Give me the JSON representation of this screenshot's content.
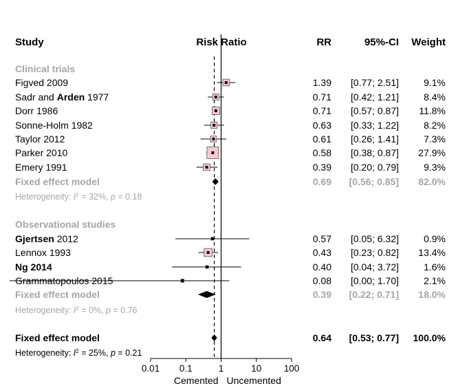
{
  "chart_data": {
    "type": "forest",
    "headers": {
      "study": "Study",
      "plot": "Risk Ratio",
      "rr": "RR",
      "ci": "95%-CI",
      "weight": "Weight"
    },
    "x_scale": "log",
    "xlim": [
      0.01,
      100
    ],
    "x_ticks": [
      {
        "value": 0.01,
        "label": "0.01"
      },
      {
        "value": 0.1,
        "label": "0.1"
      },
      {
        "value": 1,
        "label": "1"
      },
      {
        "value": 10,
        "label": "10"
      },
      {
        "value": 100,
        "label": "100"
      }
    ],
    "x_labels": {
      "left": "Cemented",
      "right": "Uncemented"
    },
    "null_value": 1,
    "overall_estimate_line": 0.64,
    "groups": [
      {
        "name": "Clinical trials",
        "studies": [
          {
            "name": "Figved 2009",
            "rr": 1.39,
            "lower": 0.77,
            "upper": 2.51,
            "rr_text": "1.39",
            "ci_text": "[0.77; 2.51]",
            "weight": 9.1,
            "weight_text": "9.1%"
          },
          {
            "name_parts": [
              {
                "text": "Sadr and ",
                "bold": false
              },
              {
                "text": "Arden",
                "bold": true
              },
              {
                "text": " 1977",
                "bold": false
              }
            ],
            "rr": 0.71,
            "lower": 0.42,
            "upper": 1.21,
            "rr_text": "0.71",
            "ci_text": "[0.42; 1.21]",
            "weight": 8.4,
            "weight_text": "8.4%"
          },
          {
            "name": "Dorr 1986",
            "rr": 0.71,
            "lower": 0.57,
            "upper": 0.87,
            "rr_text": "0.71",
            "ci_text": "[0.57; 0.87]",
            "weight": 11.8,
            "weight_text": "11.8%"
          },
          {
            "name": "Sonne-Holm 1982",
            "rr": 0.63,
            "lower": 0.33,
            "upper": 1.22,
            "rr_text": "0.63",
            "ci_text": "[0.33; 1.22]",
            "weight": 8.2,
            "weight_text": "8.2%"
          },
          {
            "name": "Taylor 2012",
            "rr": 0.61,
            "lower": 0.26,
            "upper": 1.41,
            "rr_text": "0.61",
            "ci_text": "[0.26; 1.41]",
            "weight": 7.3,
            "weight_text": "7.3%"
          },
          {
            "name": "Parker 2010",
            "rr": 0.58,
            "lower": 0.38,
            "upper": 0.87,
            "rr_text": "0.58",
            "ci_text": "[0.38; 0.87]",
            "weight": 27.9,
            "weight_text": "27.9%"
          },
          {
            "name": "Emery 1991",
            "rr": 0.39,
            "lower": 0.2,
            "upper": 0.79,
            "rr_text": "0.39",
            "ci_text": "[0.20; 0.79]",
            "weight": 9.3,
            "weight_text": "9.3%"
          }
        ],
        "pooled": {
          "label": "Fixed effect model",
          "rr": 0.69,
          "lower": 0.56,
          "upper": 0.85,
          "rr_text": "0.69",
          "ci_text": "[0.56; 0.85]",
          "weight_text": "82.0%"
        },
        "heterogeneity": {
          "prefix": "Heterogeneity: ",
          "i2_symbol": "I",
          "i2_sup": "2",
          "i2_text": " = 32%, ",
          "p_symbol": "p",
          "p_text": " = 0.18"
        }
      },
      {
        "name": "Observational studies",
        "studies": [
          {
            "name_parts": [
              {
                "text": "Gjertsen",
                "bold": true
              },
              {
                "text": " 2012",
                "bold": false
              }
            ],
            "rr": 0.57,
            "lower": 0.05,
            "upper": 6.32,
            "rr_text": "0.57",
            "ci_text": "[0.05; 6.32]",
            "weight": 0.9,
            "weight_text": "0.9%"
          },
          {
            "name": "Lennox 1993",
            "rr": 0.43,
            "lower": 0.23,
            "upper": 0.82,
            "rr_text": "0.43",
            "ci_text": "[0.23; 0.82]",
            "weight": 13.4,
            "weight_text": "13.4%"
          },
          {
            "name_parts": [
              {
                "text": "Ng 2014",
                "bold": true
              }
            ],
            "rr": 0.4,
            "lower": 0.04,
            "upper": 3.72,
            "rr_text": "0.40",
            "ci_text": "[0.04; 3.72]",
            "weight": 1.6,
            "weight_text": "1.6%"
          },
          {
            "name": "Grammatopoulos 2015",
            "rr": 0.08,
            "lower": 0.0,
            "upper": 1.7,
            "rr_text": "0.08",
            "ci_text": "[0.00; 1.70]",
            "weight": 2.1,
            "weight_text": "2.1%"
          }
        ],
        "pooled": {
          "label": "Fixed effect model",
          "rr": 0.39,
          "lower": 0.22,
          "upper": 0.71,
          "rr_text": "0.39",
          "ci_text": "[0.22; 0.71]",
          "weight_text": "18.0%"
        },
        "heterogeneity": {
          "prefix": "Heterogeneity: ",
          "i2_symbol": "I",
          "i2_sup": "2",
          "i2_text": " = 0%, ",
          "p_symbol": "p",
          "p_text": " = 0.76"
        }
      }
    ],
    "overall": {
      "label": "Fixed effect model",
      "rr": 0.64,
      "lower": 0.53,
      "upper": 0.77,
      "rr_text": "0.64",
      "ci_text": "[0.53; 0.77]",
      "weight_text": "100.0%",
      "heterogeneity": {
        "prefix": "Heterogeneity: ",
        "i2_symbol": "I",
        "i2_sup": "2",
        "i2_text": " = 25%, ",
        "p_symbol": "p",
        "p_text": " = 0.21"
      }
    },
    "colors": {
      "box_fill": "#f8c8d3",
      "box_stroke": "#000000",
      "grey_text": "#a6a6a6",
      "diamond": "#000000"
    }
  }
}
